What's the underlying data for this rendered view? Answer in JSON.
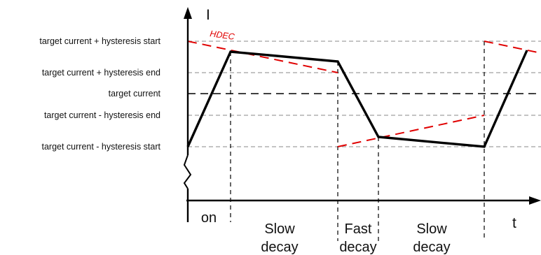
{
  "diagram": {
    "y_axis_label": "I",
    "x_axis_label": "t",
    "hdec_label": "HDEC",
    "levels": [
      {
        "key": "hyst_start_high",
        "label": "target current + hysteresis start"
      },
      {
        "key": "hyst_end_high",
        "label": "target current + hysteresis end"
      },
      {
        "key": "target",
        "label": "target current"
      },
      {
        "key": "hyst_end_low",
        "label": "target current - hysteresis end"
      },
      {
        "key": "hyst_start_low",
        "label": "target current - hysteresis start"
      }
    ],
    "phases": [
      {
        "key": "on",
        "line1": "on",
        "line2": ""
      },
      {
        "key": "slow1",
        "line1": "Slow",
        "line2": "decay"
      },
      {
        "key": "fast",
        "line1": "Fast",
        "line2": "decay"
      },
      {
        "key": "slow2",
        "line1": "Slow",
        "line2": "decay"
      },
      {
        "key": "t",
        "line1": "",
        "line2": ""
      }
    ]
  },
  "colors": {
    "current": "#000000",
    "hdec": "#e00000",
    "grid": "#a0a0a0",
    "target": "#000000"
  }
}
